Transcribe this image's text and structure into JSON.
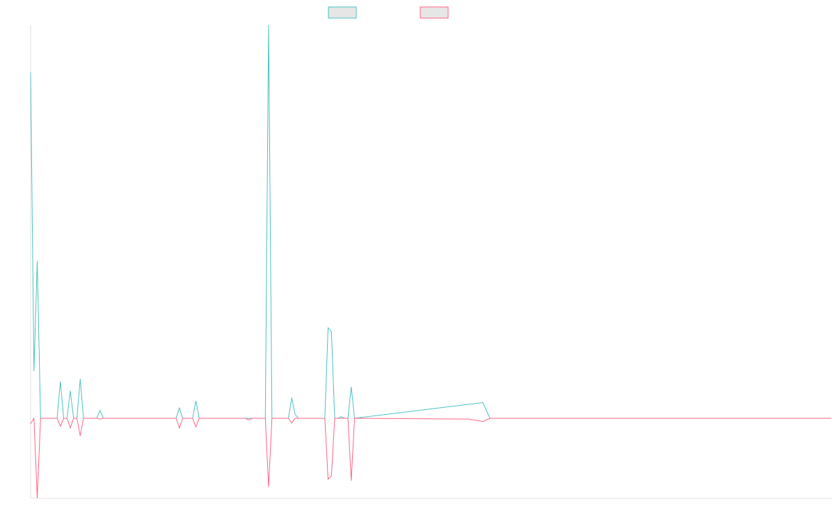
{
  "colors": {
    "series_teal": "#4bc0c0",
    "series_pink": "#ff6384",
    "legend_fill": "#e6e6e6",
    "axis": "#e0e0e0"
  },
  "chart_data": {
    "type": "line",
    "title": "",
    "xlabel": "",
    "ylabel": "",
    "ylim": [
      -1,
      5
    ],
    "grid": false,
    "legend_position": "top-center",
    "series": [
      {
        "color": "#4bc0c0",
        "values": [
          4.4,
          0.6,
          2.0,
          0,
          0,
          0,
          0,
          0,
          0,
          0.47,
          0,
          0,
          0.35,
          0,
          0,
          0.5,
          0,
          0,
          0,
          0,
          0,
          0.1,
          0,
          0,
          0,
          0,
          0,
          0,
          0,
          0,
          0,
          0,
          0,
          0,
          0,
          0,
          0,
          0,
          0,
          0,
          0,
          0,
          0,
          0,
          0,
          0.13,
          0,
          0,
          0,
          0,
          0.22,
          0,
          0,
          0,
          0,
          0,
          0,
          0,
          0,
          0,
          0,
          0,
          0,
          0,
          0,
          0,
          0,
          0,
          0,
          0,
          0,
          0,
          5.0,
          0,
          0,
          0,
          0,
          0,
          0,
          0.26,
          0.05,
          0,
          0,
          0,
          0,
          0,
          0,
          0,
          0,
          0,
          1.15,
          1.1,
          0,
          0,
          0.02,
          0,
          0,
          0.4,
          0
        ]
      },
      {
        "color": "#ff6384",
        "values": [
          -0.07,
          0,
          -1.0,
          0,
          0,
          0,
          0,
          0,
          0,
          -0.1,
          0,
          0,
          -0.12,
          0,
          0,
          -0.22,
          0,
          0,
          0,
          0,
          0,
          -0.01,
          0,
          0,
          0,
          0,
          0,
          0,
          0,
          0,
          0,
          0,
          0,
          0,
          0,
          0,
          0,
          0,
          0,
          0,
          0,
          0,
          0,
          0,
          0,
          -0.12,
          0,
          0,
          0,
          0,
          -0.11,
          0,
          0,
          0,
          0,
          0,
          0,
          0,
          0,
          0,
          0,
          0,
          0,
          0,
          0,
          0,
          -0.02,
          0,
          0,
          0,
          0,
          0,
          -0.86,
          0,
          0,
          0,
          0,
          0,
          0,
          -0.06,
          0,
          0,
          0,
          0,
          0,
          0,
          0,
          0,
          0,
          0,
          -0.76,
          -0.72,
          0,
          0,
          0,
          0,
          0,
          -0.78,
          0
        ]
      }
    ],
    "tail_points": {
      "teal": [
        [
          650,
          0.2
        ],
        [
          660,
          0
        ]
      ],
      "pink": [
        [
          630,
          -0.01
        ],
        [
          650,
          -0.04
        ],
        [
          660,
          0
        ]
      ]
    }
  }
}
